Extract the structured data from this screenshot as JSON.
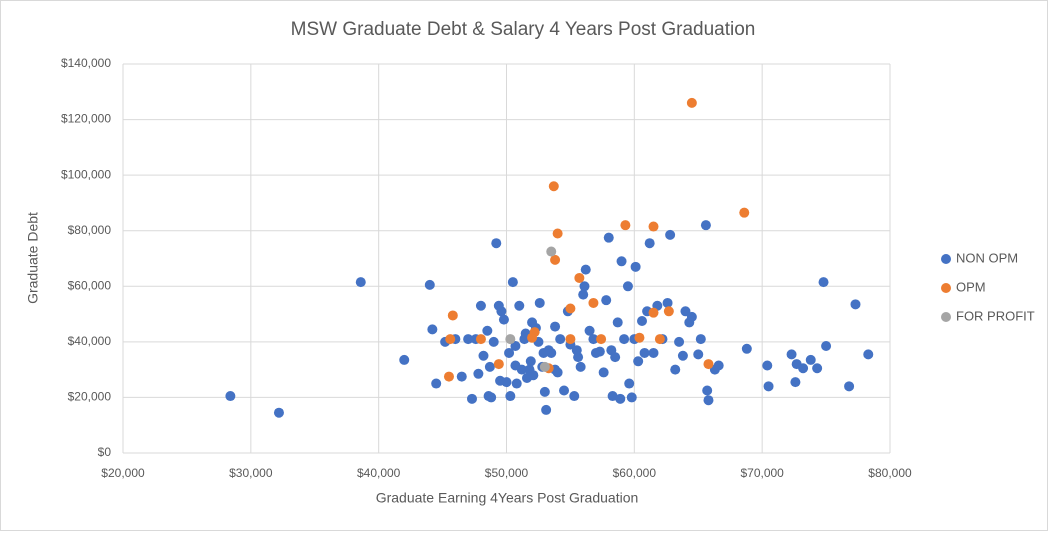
{
  "chart_data": {
    "type": "scatter",
    "title": "MSW Graduate Debt & Salary 4 Years Post Graduation",
    "x_label": "Graduate Earning 4Years Post Graduation",
    "y_label": "Graduate Debt",
    "xlim": [
      20000,
      80000
    ],
    "ylim": [
      0,
      140000
    ],
    "xticks": [
      {
        "value": 20000,
        "label": "$20,000"
      },
      {
        "value": 30000,
        "label": "$30,000"
      },
      {
        "value": 40000,
        "label": "$40,000"
      },
      {
        "value": 50000,
        "label": "$50,000"
      },
      {
        "value": 60000,
        "label": "$60,000"
      },
      {
        "value": 70000,
        "label": "$70,000"
      },
      {
        "value": 80000,
        "label": "$80,000"
      }
    ],
    "yticks": [
      {
        "value": 0,
        "label": "$0"
      },
      {
        "value": 20000,
        "label": "$20,000"
      },
      {
        "value": 40000,
        "label": "$40,000"
      },
      {
        "value": 60000,
        "label": "$60,000"
      },
      {
        "value": 80000,
        "label": "$80,000"
      },
      {
        "value": 100000,
        "label": "$100,000"
      },
      {
        "value": 120000,
        "label": "$120,000"
      },
      {
        "value": 140000,
        "label": "$140,000"
      }
    ],
    "grid": true,
    "legend": "right",
    "series": [
      {
        "name": "NON OPM",
        "color": "#4472c4",
        "x": [
          28400,
          32200,
          38600,
          42000,
          44000,
          44200,
          44500,
          45200,
          46000,
          46500,
          47000,
          47300,
          47600,
          47800,
          48000,
          48200,
          48500,
          48600,
          48800,
          48700,
          49000,
          49200,
          49400,
          49600,
          49800,
          49500,
          50000,
          50200,
          50300,
          50500,
          50700,
          50800,
          51000,
          51200,
          51400,
          51500,
          51600,
          51800,
          52000,
          52100,
          52300,
          52500,
          52600,
          52800,
          53000,
          53100,
          53300,
          53500,
          53800,
          54000,
          54200,
          54500,
          54800,
          55000,
          55300,
          55600,
          55800,
          56000,
          56100,
          56200,
          56500,
          56800,
          57000,
          57300,
          57600,
          57800,
          58000,
          58200,
          58300,
          58500,
          58700,
          58900,
          59000,
          59200,
          59500,
          59600,
          59800,
          60000,
          60100,
          60300,
          60600,
          60800,
          61000,
          61200,
          61500,
          61800,
          62200,
          62600,
          62800,
          63200,
          63500,
          63800,
          64000,
          64300,
          64500,
          65000,
          65200,
          65600,
          65700,
          65800,
          66300,
          66600,
          68800,
          70400,
          70500,
          72300,
          72600,
          72700,
          73200,
          73800,
          74300,
          74800,
          75000,
          76800,
          77300,
          78300,
          55500,
          53800,
          52900,
          51900,
          50700
        ],
        "values": [
          20500,
          14500,
          61500,
          33500,
          60500,
          44500,
          25000,
          40000,
          41000,
          27500,
          41000,
          19500,
          41000,
          28500,
          53000,
          35000,
          44000,
          20500,
          20000,
          31000,
          40000,
          75500,
          53000,
          51000,
          48000,
          26000,
          25500,
          36000,
          20500,
          61500,
          38500,
          25000,
          53000,
          30000,
          41000,
          43000,
          27000,
          30000,
          47000,
          28000,
          45000,
          40000,
          54000,
          31000,
          22000,
          15500,
          37000,
          36000,
          45500,
          29000,
          41000,
          22500,
          51000,
          39000,
          20500,
          34500,
          31000,
          57000,
          60000,
          66000,
          44000,
          41000,
          36000,
          36500,
          29000,
          55000,
          77500,
          37000,
          20500,
          34500,
          47000,
          19500,
          69000,
          41000,
          60000,
          25000,
          20000,
          41000,
          67000,
          33000,
          47500,
          36000,
          51000,
          75500,
          36000,
          53000,
          41000,
          54000,
          78500,
          30000,
          40000,
          35000,
          51000,
          47000,
          49000,
          35500,
          41000,
          82000,
          22500,
          19000,
          30000,
          31500,
          37500,
          31500,
          24000,
          35500,
          25500,
          32000,
          30500,
          33500,
          30500,
          61500,
          38500,
          24000,
          53500,
          35500,
          37000,
          30000,
          36000,
          33000,
          31500
        ]
      },
      {
        "name": "OPM",
        "color": "#ed7d31",
        "x": [
          45500,
          45600,
          45800,
          48000,
          49400,
          52000,
          52200,
          53300,
          53700,
          53800,
          54000,
          55000,
          55000,
          55700,
          56800,
          57400,
          59300,
          60400,
          61500,
          61500,
          62000,
          62700,
          64500,
          65800,
          68600
        ],
        "values": [
          27500,
          41000,
          49500,
          41000,
          32000,
          41500,
          43500,
          30500,
          96000,
          69500,
          79000,
          52000,
          41000,
          63000,
          54000,
          41000,
          82000,
          41500,
          50500,
          81500,
          41000,
          51000,
          126000,
          32000,
          86500
        ]
      },
      {
        "name": "FOR PROFIT",
        "color": "#a5a5a5",
        "x": [
          50300,
          53500,
          53000
        ],
        "values": [
          41000,
          72500,
          31000
        ]
      }
    ]
  }
}
